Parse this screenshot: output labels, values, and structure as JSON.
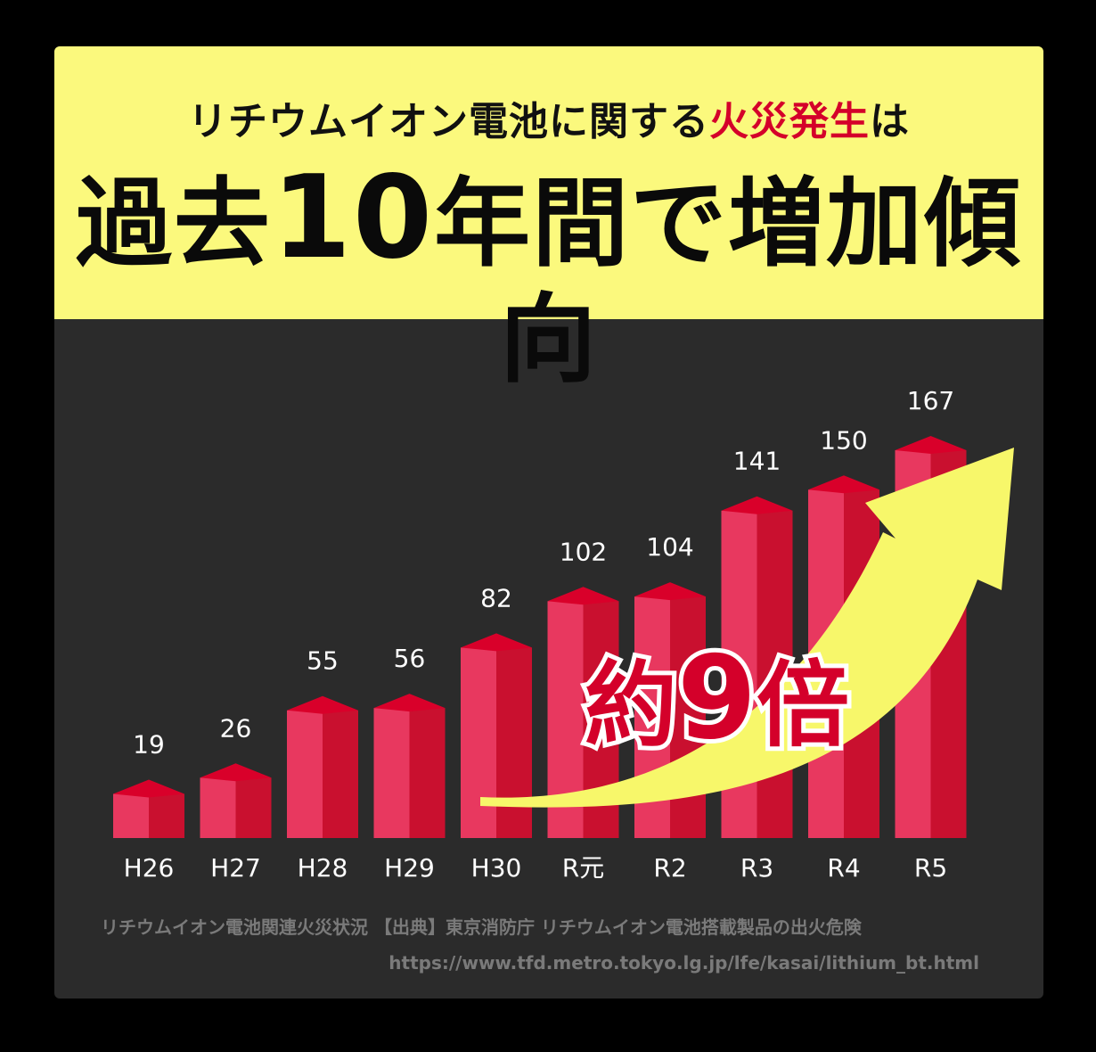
{
  "header": {
    "line1_part1": "リチウムイオン電池に関する",
    "line1_highlight": "火災発生",
    "line1_part2": "は",
    "line2_part1": "過去",
    "line2_number": "10",
    "line2_part2": "年間で増加傾向"
  },
  "annotation": {
    "prefix": "約",
    "number": "9",
    "suffix": "倍"
  },
  "source": {
    "line1": "リチウムイオン電池関連火災状況 【出典】東京消防庁 リチウムイオン電池搭載製品の出火危険",
    "line2": "https://www.tfd.metro.tokyo.lg.jp/lfe/kasai/lithium_bt.html"
  },
  "colors": {
    "header_bg": "#fbf97d",
    "accent_red": "#d4002a",
    "bar_front": "#e8385f",
    "bar_side": "#c9102f",
    "bar_top": "#d9002a",
    "arrow": "#f7f76a",
    "panel_bg": "#2b2b2b"
  },
  "chart_data": {
    "type": "bar",
    "categories": [
      "H26",
      "H27",
      "H28",
      "H29",
      "H30",
      "R元",
      "R2",
      "R3",
      "R4",
      "R5"
    ],
    "values": [
      19,
      26,
      55,
      56,
      82,
      102,
      104,
      141,
      150,
      167
    ],
    "title": "",
    "xlabel": "",
    "ylabel": "",
    "ylim": [
      0,
      167
    ],
    "grid": false,
    "legend": "none",
    "style": "3d-bars-with-upward-arrow"
  }
}
